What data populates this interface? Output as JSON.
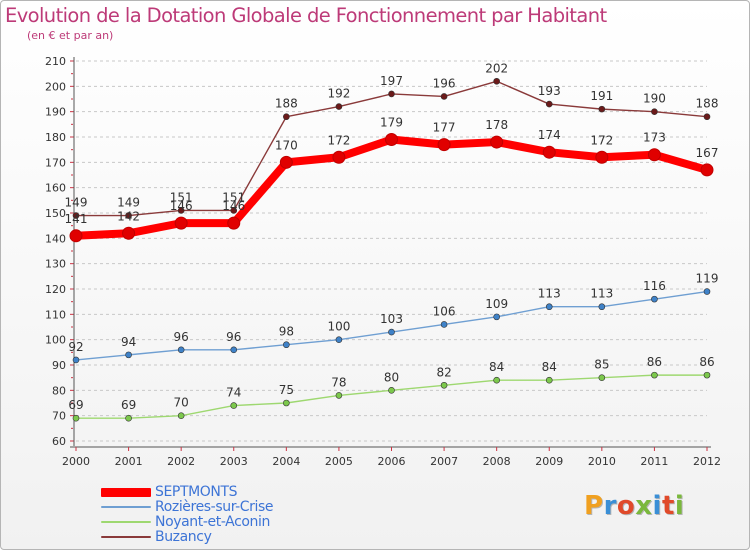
{
  "title": "Evolution de la Dotation Globale de Fonctionnement par Habitant",
  "subtitle": "(en € et par an)",
  "logo_text": "Proxiti",
  "colors": {
    "title": "#bd3a78",
    "legend_text": "#3d74d6",
    "grid": "#c8c8c8",
    "axis": "#555555"
  },
  "chart_data": {
    "type": "line",
    "title": "Evolution de la Dotation Globale de Fonctionnement par Habitant",
    "subtitle": "(en € et par an)",
    "x": [
      "2000",
      "2001",
      "2002",
      "2003",
      "2004",
      "2005",
      "2006",
      "2007",
      "2008",
      "2009",
      "2010",
      "2011",
      "2012"
    ],
    "ylim": [
      60,
      210
    ],
    "yticks": [
      60,
      70,
      80,
      90,
      100,
      110,
      120,
      130,
      140,
      150,
      160,
      170,
      180,
      190,
      200,
      210
    ],
    "grid": "horizontal dashed",
    "legend_placement": "bottom-left",
    "series": [
      {
        "name": "SEPTMONTS",
        "color": "#ff0000",
        "marker": "#e00000",
        "values": [
          141,
          142,
          146,
          146,
          170,
          172,
          179,
          177,
          178,
          174,
          172,
          173,
          167
        ]
      },
      {
        "name": "Rozières-sur-Crise",
        "color": "#6f9fd2",
        "marker": "#3f82c8",
        "values": [
          92,
          94,
          96,
          96,
          98,
          100,
          103,
          106,
          109,
          113,
          113,
          116,
          119
        ]
      },
      {
        "name": "Noyant-et-Aconin",
        "color": "#9ed870",
        "marker": "#7cc84c",
        "values": [
          69,
          69,
          70,
          74,
          75,
          78,
          80,
          82,
          84,
          84,
          85,
          86,
          86
        ]
      },
      {
        "name": "Buzancy",
        "color": "#8a3a3a",
        "marker": "#6b1a1a",
        "values": [
          149,
          149,
          151,
          151,
          188,
          192,
          197,
          196,
          202,
          193,
          191,
          190,
          188
        ]
      }
    ]
  }
}
